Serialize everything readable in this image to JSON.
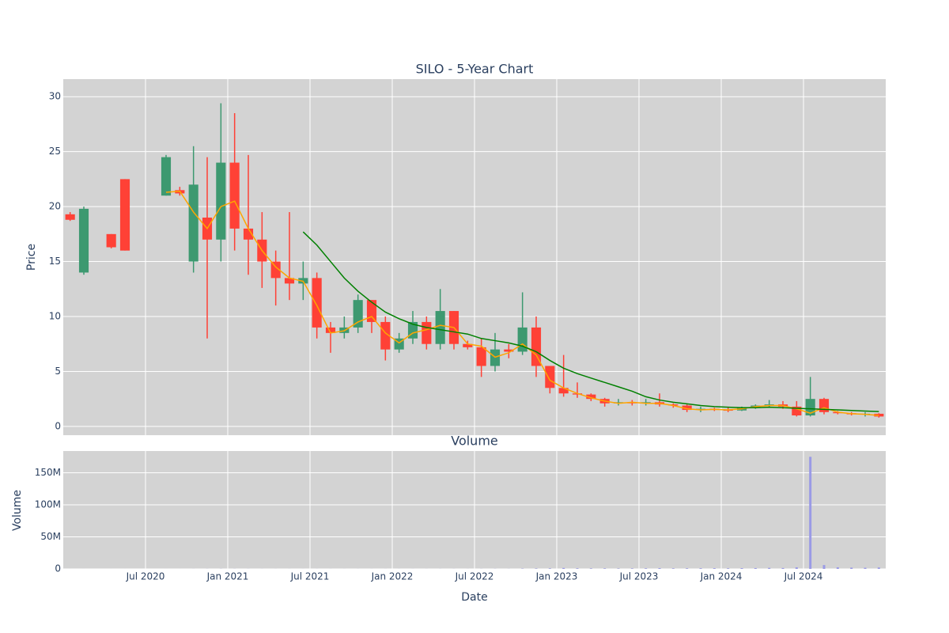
{
  "chart_data": [
    {
      "type": "candlestick",
      "title": "SILO - 5-Year Chart",
      "ylabel": "Price",
      "x": [
        "2020-01",
        "2020-02",
        "2020-03",
        "2020-04",
        "2020-05",
        "2020-06",
        "2020-07",
        "2020-08",
        "2020-09",
        "2020-10",
        "2020-11",
        "2020-12",
        "2021-01",
        "2021-02",
        "2021-03",
        "2021-04",
        "2021-05",
        "2021-06",
        "2021-07",
        "2021-08",
        "2021-09",
        "2021-10",
        "2021-11",
        "2021-12",
        "2022-01",
        "2022-02",
        "2022-03",
        "2022-04",
        "2022-05",
        "2022-06",
        "2022-07",
        "2022-08",
        "2022-09",
        "2022-10",
        "2022-11",
        "2022-12",
        "2023-01",
        "2023-02",
        "2023-03",
        "2023-04",
        "2023-05",
        "2023-06",
        "2023-07",
        "2023-08",
        "2023-09",
        "2023-10",
        "2023-11",
        "2023-12",
        "2024-01",
        "2024-02",
        "2024-03",
        "2024-04",
        "2024-05",
        "2024-06",
        "2024-07",
        "2024-08",
        "2024-09",
        "2024-10",
        "2024-11",
        "2024-12"
      ],
      "open": [
        19.3,
        14,
        null,
        17.5,
        22.5,
        null,
        null,
        21,
        21.5,
        15,
        19,
        17,
        24,
        18,
        17,
        15,
        13.5,
        13,
        13.5,
        9,
        8.5,
        9,
        11.5,
        9.5,
        7,
        8,
        9.5,
        7.5,
        10.5,
        7.5,
        7.2,
        5.5,
        7,
        6.8,
        9,
        5.5,
        3.5,
        3,
        2.9,
        2.5,
        2.1,
        2.2,
        2.1,
        2.2,
        2,
        1.9,
        1.5,
        1.6,
        1.5,
        1.45,
        1.7,
        1.9,
        2,
        1.8,
        1,
        2.5,
        1.3,
        1.2,
        1.1,
        1.15
      ],
      "high": [
        19.5,
        20,
        null,
        17.5,
        22.5,
        null,
        null,
        24.7,
        21.8,
        25.5,
        24.5,
        29.4,
        28.5,
        24.7,
        19.5,
        16,
        19.5,
        15,
        14,
        9.5,
        10,
        12,
        11.5,
        10,
        8.5,
        10.5,
        10,
        12.5,
        10.5,
        7.8,
        8,
        8.5,
        7.5,
        12.2,
        10,
        5.5,
        6.5,
        4,
        3,
        2.6,
        2.5,
        2.4,
        2.5,
        3,
        2.1,
        2,
        1.8,
        1.7,
        1.7,
        1.8,
        2,
        2.4,
        2.3,
        2.3,
        4.5,
        2.6,
        1.4,
        1.3,
        1.3,
        1.2
      ],
      "low": [
        18.7,
        13.8,
        null,
        16.2,
        16,
        null,
        null,
        21,
        21,
        14,
        8,
        15,
        16,
        13.8,
        12.6,
        11,
        11.5,
        11.5,
        8,
        6.7,
        8,
        8.5,
        8.5,
        6,
        6.7,
        7.5,
        7,
        7,
        7,
        7,
        4.5,
        5,
        6.2,
        6.5,
        4.5,
        3,
        2.7,
        2.6,
        2.3,
        1.8,
        1.9,
        1.9,
        1.9,
        1.8,
        1.7,
        1.3,
        1.3,
        1.4,
        1.3,
        1.4,
        1.6,
        1.7,
        1.6,
        0.9,
        0.9,
        1.1,
        1.1,
        1,
        0.9,
        0.8
      ],
      "close": [
        18.8,
        19.8,
        null,
        16.3,
        16,
        null,
        null,
        24.5,
        21.2,
        22,
        17,
        24,
        18,
        17,
        15,
        13.5,
        13,
        13.5,
        9,
        8.5,
        9,
        11.5,
        9.5,
        7,
        8,
        9.5,
        7.5,
        10.5,
        7.5,
        7.2,
        5.5,
        7,
        6.8,
        9,
        5.5,
        3.5,
        3,
        2.9,
        2.5,
        2.1,
        2.2,
        2.1,
        2.2,
        2,
        1.9,
        1.5,
        1.6,
        1.5,
        1.45,
        1.7,
        1.9,
        2,
        1.8,
        1,
        2.5,
        1.3,
        1.2,
        1.1,
        1.15,
        0.9
      ],
      "increasing_color": "#3d9970",
      "decreasing_color": "#ff4136",
      "series": [
        {
          "color": "orange",
          "values": [
            null,
            null,
            null,
            null,
            null,
            null,
            null,
            21.3,
            21.4,
            19.5,
            18,
            20,
            20.5,
            18,
            16,
            14.5,
            13.5,
            13.2,
            11,
            8.5,
            8.7,
            9.5,
            10,
            8.5,
            7.6,
            8.5,
            8.8,
            9.2,
            9,
            7.5,
            7.3,
            6.3,
            6.7,
            7.5,
            6.5,
            4.2,
            3.5,
            3,
            2.6,
            2.3,
            2.1,
            2.2,
            2.1,
            2.1,
            1.9,
            1.6,
            1.5,
            1.55,
            1.5,
            1.6,
            1.8,
            1.9,
            1.9,
            1.6,
            1.2,
            1.7,
            1.3,
            1.15,
            1.1,
            1.0
          ]
        },
        {
          "color": "green",
          "values": [
            null,
            null,
            null,
            null,
            null,
            null,
            null,
            null,
            null,
            null,
            null,
            null,
            null,
            null,
            null,
            null,
            null,
            17.7,
            16.5,
            15,
            13.5,
            12.3,
            11.3,
            10.4,
            9.8,
            9.3,
            9,
            8.8,
            8.6,
            8.4,
            8,
            7.8,
            7.6,
            7.3,
            6.8,
            6,
            5.3,
            4.8,
            4.4,
            4,
            3.6,
            3.2,
            2.7,
            2.4,
            2.2,
            2.05,
            1.9,
            1.8,
            1.75,
            1.7,
            1.7,
            1.75,
            1.7,
            1.65,
            1.6,
            1.55,
            1.5,
            1.45,
            1.4,
            1.35
          ]
        }
      ],
      "xlim": [
        "2020-01",
        "2024-12"
      ],
      "ylim": [
        -0.8,
        31.6
      ],
      "yticks": [
        0,
        5,
        10,
        15,
        20,
        25,
        30
      ],
      "grid": true
    },
    {
      "type": "bar",
      "title": "Volume",
      "ylabel": "Volume",
      "xlabel": "Date",
      "x": [
        "2020-01",
        "2020-02",
        "2020-03",
        "2020-04",
        "2020-05",
        "2020-06",
        "2020-07",
        "2020-08",
        "2020-09",
        "2020-10",
        "2020-11",
        "2020-12",
        "2021-01",
        "2021-02",
        "2021-03",
        "2021-04",
        "2021-05",
        "2021-06",
        "2021-07",
        "2021-08",
        "2021-09",
        "2021-10",
        "2021-11",
        "2021-12",
        "2022-01",
        "2022-02",
        "2022-03",
        "2022-04",
        "2022-05",
        "2022-06",
        "2022-07",
        "2022-08",
        "2022-09",
        "2022-10",
        "2022-11",
        "2022-12",
        "2023-01",
        "2023-02",
        "2023-03",
        "2023-04",
        "2023-05",
        "2023-06",
        "2023-07",
        "2023-08",
        "2023-09",
        "2023-10",
        "2023-11",
        "2023-12",
        "2024-01",
        "2024-02",
        "2024-03",
        "2024-04",
        "2024-05",
        "2024-06",
        "2024-07",
        "2024-08",
        "2024-09",
        "2024-10",
        "2024-11",
        "2024-12"
      ],
      "values": [
        10000,
        20000,
        0,
        10000,
        10000,
        0,
        0,
        20000,
        10000,
        60000,
        100000,
        150000,
        120000,
        80000,
        60000,
        50000,
        60000,
        40000,
        50000,
        60000,
        40000,
        70000,
        50000,
        60000,
        50000,
        70000,
        60000,
        90000,
        80000,
        70000,
        120000,
        150000,
        100000,
        400000,
        600000,
        800000,
        1500000,
        900000,
        700000,
        800000,
        600000,
        700000,
        900000,
        1200000,
        800000,
        900000,
        1000000,
        1100000,
        900000,
        1200000,
        1300000,
        1600000,
        1400000,
        2500000,
        175000000,
        6000000,
        2500000,
        2000000,
        1800000,
        2200000
      ],
      "color": "#9a9ae6",
      "xlim": [
        "2020-01",
        "2024-12"
      ],
      "xticks": [
        {
          "value": "2020-07",
          "label": "Jul 2020"
        },
        {
          "value": "2021-01",
          "label": "Jan 2021"
        },
        {
          "value": "2021-07",
          "label": "Jul 2021"
        },
        {
          "value": "2022-01",
          "label": "Jan 2022"
        },
        {
          "value": "2022-07",
          "label": "Jul 2022"
        },
        {
          "value": "2023-01",
          "label": "Jan 2023"
        },
        {
          "value": "2023-07",
          "label": "Jul 2023"
        },
        {
          "value": "2024-01",
          "label": "Jan 2024"
        },
        {
          "value": "2024-07",
          "label": "Jul 2024"
        }
      ],
      "ylim": [
        0,
        184000000
      ],
      "yticks": [
        0,
        {
          "value": 50000000,
          "label": "50M"
        },
        {
          "value": 100000000,
          "label": "100M"
        },
        {
          "value": 150000000,
          "label": "150M"
        }
      ],
      "grid": true
    }
  ]
}
